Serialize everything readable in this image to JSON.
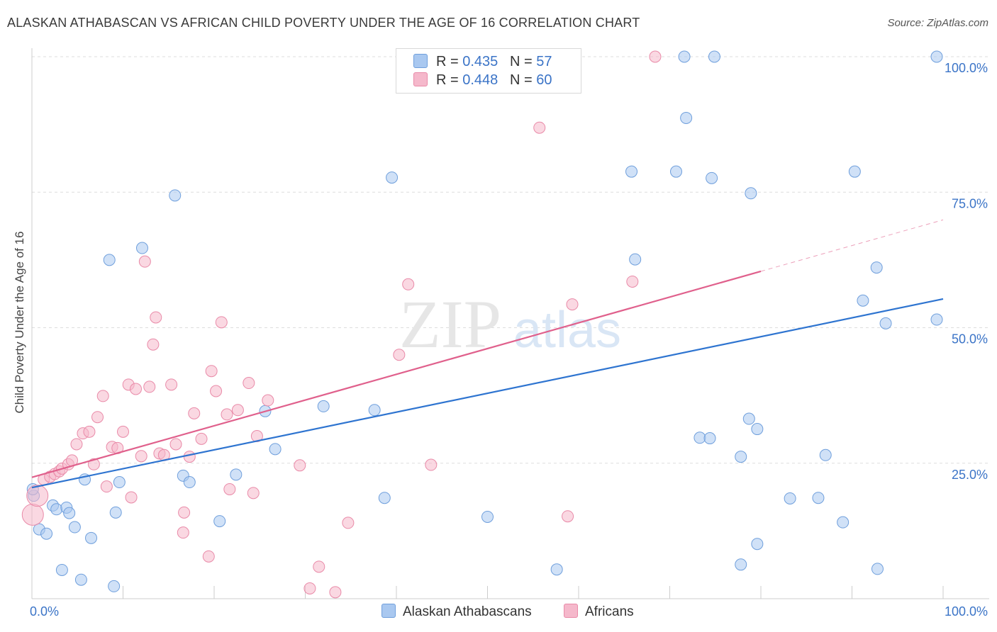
{
  "header": {
    "title": "ALASKAN ATHABASCAN VS AFRICAN CHILD POVERTY UNDER THE AGE OF 16 CORRELATION CHART",
    "source": "Source: ZipAtlas.com"
  },
  "watermark": {
    "zip": "ZIP",
    "atlas": "atlas"
  },
  "legend": {
    "rows": [
      {
        "r_label": "R =",
        "r_value": "0.435",
        "n_label": "N =",
        "n_value": "57",
        "color": "#a9c8f0"
      },
      {
        "r_label": "R =",
        "r_value": "0.448",
        "n_label": "N =",
        "n_value": "60",
        "color": "#f5b8cb"
      }
    ]
  },
  "bottom_legend": {
    "items": [
      {
        "label": "Alaskan Athabascans",
        "color": "#a9c8f0"
      },
      {
        "label": "Africans",
        "color": "#f5b8cb"
      }
    ]
  },
  "chart_data": {
    "type": "scatter",
    "title": "ALASKAN ATHABASCAN VS AFRICAN CHILD POVERTY UNDER THE AGE OF 16 CORRELATION CHART",
    "xlabel": "",
    "ylabel": "Child Poverty Under the Age of 16",
    "xlim": [
      0,
      100
    ],
    "ylim": [
      0,
      100
    ],
    "x_tick_labels": [
      "0.0%",
      "100.0%"
    ],
    "y_tick_labels": [
      "25.0%",
      "50.0%",
      "75.0%",
      "100.0%"
    ],
    "y_ticks": [
      25,
      50,
      75,
      100
    ],
    "grid": true,
    "legend_position": "top-center",
    "series": [
      {
        "name": "Alaskan Athabascans",
        "color": "#a9c8f0",
        "edge": "#6f9fdc",
        "line_color": "#2e74d0",
        "trend": {
          "x": [
            0,
            100
          ],
          "y": [
            20.5,
            55.3
          ]
        },
        "points": [
          [
            0.2,
            19.0
          ],
          [
            0.8,
            12.8
          ],
          [
            1.6,
            12.0
          ],
          [
            2.3,
            17.2
          ],
          [
            2.7,
            16.5
          ],
          [
            3.8,
            16.8
          ],
          [
            4.1,
            15.8
          ],
          [
            4.7,
            13.2
          ],
          [
            3.3,
            5.3
          ],
          [
            5.4,
            3.5
          ],
          [
            6.5,
            11.2
          ],
          [
            5.8,
            22.0
          ],
          [
            8.5,
            62.5
          ],
          [
            9.0,
            2.3
          ],
          [
            9.2,
            15.9
          ],
          [
            9.6,
            21.5
          ],
          [
            12.1,
            64.7
          ],
          [
            15.7,
            74.4
          ],
          [
            16.6,
            22.7
          ],
          [
            17.3,
            21.5
          ],
          [
            20.6,
            14.3
          ],
          [
            22.4,
            22.9
          ],
          [
            25.6,
            34.6
          ],
          [
            26.7,
            27.6
          ],
          [
            32.0,
            35.5
          ],
          [
            37.6,
            34.8
          ],
          [
            38.7,
            18.6
          ],
          [
            39.5,
            77.7
          ],
          [
            50.0,
            15.1
          ],
          [
            57.6,
            5.4
          ],
          [
            65.8,
            78.8
          ],
          [
            66.2,
            62.6
          ],
          [
            70.7,
            78.8
          ],
          [
            71.6,
            100.0
          ],
          [
            71.8,
            88.7
          ],
          [
            73.3,
            29.7
          ],
          [
            74.4,
            29.6
          ],
          [
            74.6,
            77.6
          ],
          [
            74.9,
            100.0
          ],
          [
            77.8,
            26.2
          ],
          [
            77.8,
            6.3
          ],
          [
            78.7,
            33.2
          ],
          [
            78.9,
            74.8
          ],
          [
            79.6,
            10.1
          ],
          [
            79.6,
            31.3
          ],
          [
            83.2,
            18.5
          ],
          [
            86.3,
            18.6
          ],
          [
            87.1,
            26.5
          ],
          [
            90.3,
            78.8
          ],
          [
            89.0,
            14.1
          ],
          [
            91.2,
            55.0
          ],
          [
            92.7,
            61.1
          ],
          [
            92.8,
            5.5
          ],
          [
            93.7,
            50.8
          ],
          [
            99.3,
            51.5
          ],
          [
            99.3,
            100.0
          ],
          [
            0.1,
            20.2
          ]
        ]
      },
      {
        "name": "Africans",
        "color": "#f5b8cb",
        "edge": "#e98aa8",
        "line_color": "#e0608c",
        "trend": {
          "x": [
            0,
            80
          ],
          "y": [
            22.4,
            60.4
          ]
        },
        "trend_ext": {
          "x": [
            80,
            100
          ],
          "y": [
            60.4,
            69.9
          ]
        },
        "points": [
          [
            0.1,
            15.5
          ],
          [
            0.6,
            19.0
          ],
          [
            1.3,
            22.0
          ],
          [
            2.0,
            22.5
          ],
          [
            2.5,
            23.0
          ],
          [
            3.0,
            23.5
          ],
          [
            3.3,
            24.0
          ],
          [
            4.0,
            24.8
          ],
          [
            4.4,
            25.5
          ],
          [
            4.9,
            28.5
          ],
          [
            5.6,
            30.5
          ],
          [
            6.3,
            30.8
          ],
          [
            6.8,
            24.8
          ],
          [
            7.2,
            33.5
          ],
          [
            7.8,
            37.4
          ],
          [
            8.2,
            20.7
          ],
          [
            8.8,
            28.0
          ],
          [
            9.4,
            27.8
          ],
          [
            10.0,
            30.8
          ],
          [
            10.6,
            39.5
          ],
          [
            10.9,
            18.7
          ],
          [
            11.4,
            38.7
          ],
          [
            12.0,
            26.3
          ],
          [
            12.4,
            62.2
          ],
          [
            12.9,
            39.1
          ],
          [
            13.3,
            46.9
          ],
          [
            13.6,
            51.9
          ],
          [
            14.0,
            26.8
          ],
          [
            14.5,
            26.5
          ],
          [
            15.3,
            39.5
          ],
          [
            15.8,
            28.5
          ],
          [
            16.6,
            12.2
          ],
          [
            16.7,
            15.9
          ],
          [
            17.3,
            26.2
          ],
          [
            17.8,
            34.2
          ],
          [
            18.6,
            29.5
          ],
          [
            19.4,
            7.8
          ],
          [
            19.7,
            42.0
          ],
          [
            20.2,
            38.3
          ],
          [
            20.8,
            51.0
          ],
          [
            21.4,
            34.0
          ],
          [
            21.7,
            20.2
          ],
          [
            22.6,
            34.8
          ],
          [
            23.8,
            39.8
          ],
          [
            24.3,
            19.5
          ],
          [
            24.7,
            30.0
          ],
          [
            25.9,
            36.6
          ],
          [
            29.4,
            24.6
          ],
          [
            30.5,
            1.9
          ],
          [
            31.5,
            5.9
          ],
          [
            33.3,
            1.2
          ],
          [
            34.7,
            14.0
          ],
          [
            40.3,
            45.0
          ],
          [
            41.3,
            58.0
          ],
          [
            43.8,
            24.7
          ],
          [
            55.7,
            86.9
          ],
          [
            58.8,
            15.2
          ],
          [
            59.3,
            54.3
          ],
          [
            65.9,
            58.5
          ],
          [
            68.4,
            100.0
          ]
        ]
      }
    ]
  }
}
